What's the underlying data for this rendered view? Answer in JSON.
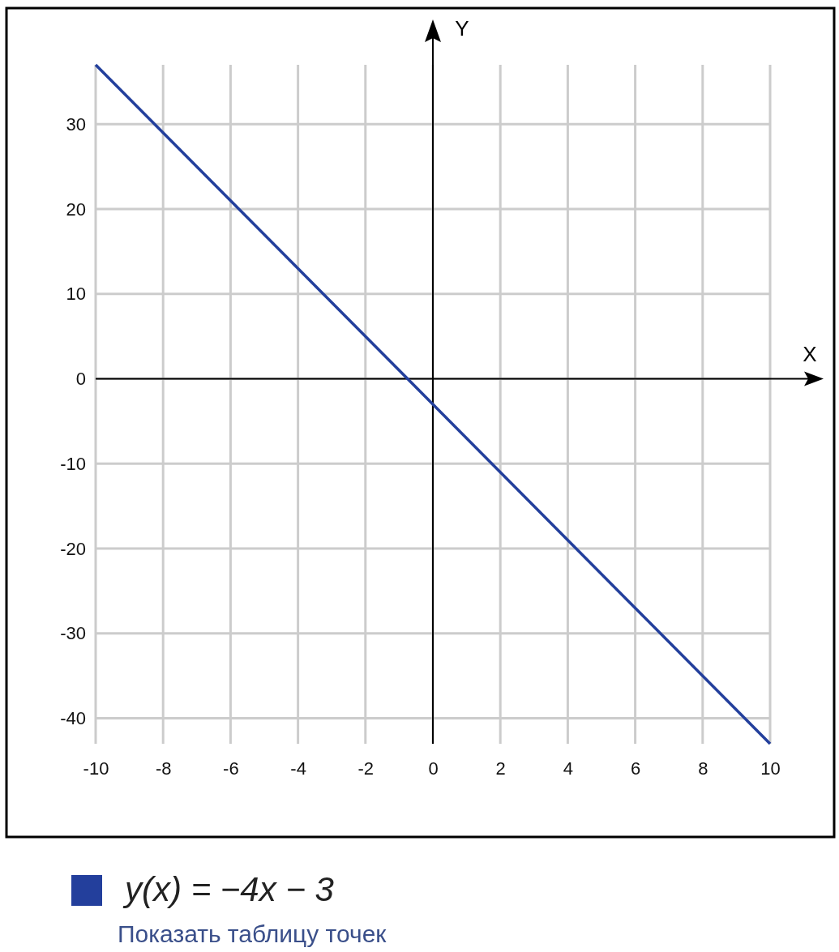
{
  "chart_data": {
    "type": "line",
    "xlabel": "X",
    "ylabel": "Y",
    "x": [
      -10,
      10
    ],
    "series": [
      {
        "name": "y(x) = −4x − 3",
        "color": "#233f9c",
        "values": [
          37,
          -43
        ]
      }
    ],
    "xlim": [
      -10,
      10
    ],
    "xticks": [
      -10,
      -8,
      -6,
      -4,
      -2,
      0,
      2,
      4,
      6,
      8,
      10
    ],
    "ylim": [
      -43,
      37
    ],
    "yticks": [
      -40,
      -30,
      -20,
      -10,
      0,
      10,
      20,
      30
    ],
    "grid": true,
    "legend": "bottom",
    "line_style": "solid",
    "marker": "none",
    "annotations": [
      "Показать таблицу точек"
    ]
  }
}
